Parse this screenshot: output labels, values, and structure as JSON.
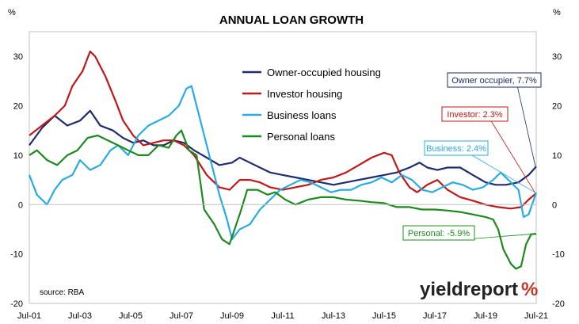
{
  "chart_data": {
    "type": "line",
    "title": "ANNUAL LOAN GROWTH",
    "ylabel_left": "%",
    "ylabel_right": "%",
    "ylim": [
      -20,
      35
    ],
    "yticks": [
      -20,
      -10,
      0,
      10,
      20,
      30
    ],
    "x_tick_labels": [
      "Jul-01",
      "Jul-03",
      "Jul-05",
      "Jul-07",
      "Jul-09",
      "Jul-11",
      "Jul-13",
      "Jul-15",
      "Jul-17",
      "Jul-19",
      "Jul-21"
    ],
    "x_tick_years": [
      2001.5,
      2003.5,
      2005.5,
      2007.5,
      2009.5,
      2011.5,
      2013.5,
      2015.5,
      2017.5,
      2019.5,
      2021.5
    ],
    "xlim": [
      2001.5,
      2021.5
    ],
    "grid": false,
    "legend_position": "top-center",
    "source": "source: RBA",
    "brand": "yieldreport",
    "brand_symbol": "%",
    "brand_symbol_color": "#c0392b",
    "series": [
      {
        "name": "Owner-occupied housing",
        "color": "#1f2d6b",
        "annotation": "Owner occupier, 7.7%",
        "points": [
          [
            2001.5,
            12
          ],
          [
            2002.0,
            15.5
          ],
          [
            2002.5,
            18
          ],
          [
            2003.0,
            16
          ],
          [
            2003.5,
            17
          ],
          [
            2003.9,
            19
          ],
          [
            2004.3,
            16
          ],
          [
            2004.8,
            15
          ],
          [
            2005.2,
            13.5
          ],
          [
            2005.6,
            12.5
          ],
          [
            2006.0,
            13
          ],
          [
            2006.4,
            12
          ],
          [
            2006.8,
            12
          ],
          [
            2007.2,
            13
          ],
          [
            2007.6,
            12.5
          ],
          [
            2008.0,
            11
          ],
          [
            2008.5,
            9.5
          ],
          [
            2009.0,
            8
          ],
          [
            2009.5,
            8.5
          ],
          [
            2009.8,
            9.5
          ],
          [
            2010.2,
            8.5
          ],
          [
            2010.6,
            7.5
          ],
          [
            2011.0,
            6.5
          ],
          [
            2011.5,
            6
          ],
          [
            2012.0,
            5.5
          ],
          [
            2012.5,
            5
          ],
          [
            2013.0,
            4.5
          ],
          [
            2013.5,
            4
          ],
          [
            2014.0,
            4.5
          ],
          [
            2014.5,
            5
          ],
          [
            2015.0,
            5.5
          ],
          [
            2015.5,
            6
          ],
          [
            2016.0,
            6.5
          ],
          [
            2016.5,
            7.5
          ],
          [
            2016.9,
            8.5
          ],
          [
            2017.2,
            7.5
          ],
          [
            2017.6,
            7
          ],
          [
            2018.0,
            7.5
          ],
          [
            2018.5,
            7.5
          ],
          [
            2019.0,
            6
          ],
          [
            2019.5,
            4.5
          ],
          [
            2019.9,
            4
          ],
          [
            2020.3,
            4
          ],
          [
            2020.8,
            4.5
          ],
          [
            2021.2,
            6
          ],
          [
            2021.5,
            7.7
          ]
        ]
      },
      {
        "name": "Investor housing",
        "color": "#c01818",
        "annotation": "Investor: 2.3%",
        "points": [
          [
            2001.5,
            14
          ],
          [
            2002.0,
            16
          ],
          [
            2002.5,
            18
          ],
          [
            2002.9,
            20
          ],
          [
            2003.2,
            24
          ],
          [
            2003.6,
            27
          ],
          [
            2003.9,
            31
          ],
          [
            2004.1,
            30
          ],
          [
            2004.5,
            26
          ],
          [
            2004.9,
            21
          ],
          [
            2005.2,
            17
          ],
          [
            2005.6,
            14
          ],
          [
            2006.0,
            12
          ],
          [
            2006.4,
            12.5
          ],
          [
            2006.8,
            13
          ],
          [
            2007.2,
            13
          ],
          [
            2007.6,
            12
          ],
          [
            2008.0,
            10
          ],
          [
            2008.5,
            6
          ],
          [
            2009.0,
            3.5
          ],
          [
            2009.4,
            3
          ],
          [
            2009.8,
            5
          ],
          [
            2010.2,
            5
          ],
          [
            2010.6,
            4.5
          ],
          [
            2011.0,
            3.5
          ],
          [
            2011.5,
            3
          ],
          [
            2012.0,
            3.5
          ],
          [
            2012.5,
            4
          ],
          [
            2013.0,
            5
          ],
          [
            2013.5,
            5.5
          ],
          [
            2014.0,
            6.5
          ],
          [
            2014.5,
            8
          ],
          [
            2015.0,
            9.5
          ],
          [
            2015.5,
            10.5
          ],
          [
            2015.8,
            10
          ],
          [
            2016.1,
            6.5
          ],
          [
            2016.5,
            3.5
          ],
          [
            2016.8,
            2.5
          ],
          [
            2017.2,
            4
          ],
          [
            2017.6,
            5
          ],
          [
            2018.0,
            3
          ],
          [
            2018.5,
            1.5
          ],
          [
            2019.0,
            0.8
          ],
          [
            2019.5,
            0
          ],
          [
            2020.0,
            -0.5
          ],
          [
            2020.5,
            -0.8
          ],
          [
            2020.9,
            -0.5
          ],
          [
            2021.2,
            1
          ],
          [
            2021.5,
            2.3
          ]
        ]
      },
      {
        "name": "Business loans",
        "color": "#29abe2",
        "annotation": "Business: 2.4%",
        "points": [
          [
            2001.5,
            6
          ],
          [
            2001.8,
            2
          ],
          [
            2002.2,
            0
          ],
          [
            2002.5,
            3
          ],
          [
            2002.8,
            5
          ],
          [
            2003.2,
            6
          ],
          [
            2003.5,
            9
          ],
          [
            2003.9,
            7
          ],
          [
            2004.3,
            8
          ],
          [
            2004.7,
            11
          ],
          [
            2005.0,
            12
          ],
          [
            2005.4,
            10
          ],
          [
            2005.8,
            14
          ],
          [
            2006.2,
            16
          ],
          [
            2006.6,
            17
          ],
          [
            2007.0,
            18
          ],
          [
            2007.4,
            20
          ],
          [
            2007.7,
            23.5
          ],
          [
            2007.9,
            24
          ],
          [
            2008.2,
            18
          ],
          [
            2008.6,
            10
          ],
          [
            2009.0,
            2
          ],
          [
            2009.3,
            -3
          ],
          [
            2009.5,
            -7
          ],
          [
            2009.8,
            -5
          ],
          [
            2010.2,
            -4
          ],
          [
            2010.6,
            -1
          ],
          [
            2011.0,
            1
          ],
          [
            2011.4,
            3
          ],
          [
            2011.8,
            4
          ],
          [
            2012.2,
            5
          ],
          [
            2012.6,
            4.5
          ],
          [
            2013.0,
            3.5
          ],
          [
            2013.4,
            2.5
          ],
          [
            2013.8,
            3
          ],
          [
            2014.2,
            3
          ],
          [
            2014.6,
            4
          ],
          [
            2015.0,
            4.5
          ],
          [
            2015.4,
            5.5
          ],
          [
            2015.8,
            4.5
          ],
          [
            2016.2,
            6
          ],
          [
            2016.6,
            5
          ],
          [
            2017.0,
            3
          ],
          [
            2017.4,
            2.5
          ],
          [
            2017.8,
            3.5
          ],
          [
            2018.2,
            4.5
          ],
          [
            2018.6,
            4
          ],
          [
            2019.0,
            3
          ],
          [
            2019.4,
            3.5
          ],
          [
            2019.8,
            5
          ],
          [
            2020.1,
            6.5
          ],
          [
            2020.4,
            5
          ],
          [
            2020.8,
            3
          ],
          [
            2021.0,
            -2.5
          ],
          [
            2021.2,
            -2
          ],
          [
            2021.5,
            2.4
          ]
        ]
      },
      {
        "name": "Personal loans",
        "color": "#1d8a1d",
        "annotation": "Personal:  -5.9%",
        "points": [
          [
            2001.5,
            10
          ],
          [
            2001.8,
            11
          ],
          [
            2002.2,
            9
          ],
          [
            2002.6,
            8
          ],
          [
            2003.0,
            10
          ],
          [
            2003.4,
            11
          ],
          [
            2003.8,
            13.5
          ],
          [
            2004.2,
            14
          ],
          [
            2004.6,
            13
          ],
          [
            2005.0,
            12
          ],
          [
            2005.4,
            11
          ],
          [
            2005.8,
            10
          ],
          [
            2006.2,
            10
          ],
          [
            2006.6,
            12
          ],
          [
            2007.0,
            11.5
          ],
          [
            2007.3,
            14
          ],
          [
            2007.5,
            15
          ],
          [
            2007.8,
            11
          ],
          [
            2008.1,
            10
          ],
          [
            2008.4,
            -1
          ],
          [
            2008.8,
            -4
          ],
          [
            2009.1,
            -7
          ],
          [
            2009.4,
            -8
          ],
          [
            2009.8,
            -2
          ],
          [
            2010.1,
            3
          ],
          [
            2010.5,
            3
          ],
          [
            2010.9,
            2
          ],
          [
            2011.2,
            2.5
          ],
          [
            2011.6,
            1
          ],
          [
            2012.0,
            0
          ],
          [
            2012.5,
            1
          ],
          [
            2013.0,
            1.5
          ],
          [
            2013.5,
            1.5
          ],
          [
            2014.0,
            1
          ],
          [
            2014.5,
            0.8
          ],
          [
            2015.0,
            0.5
          ],
          [
            2015.5,
            0.3
          ],
          [
            2016.0,
            -0.5
          ],
          [
            2016.5,
            -0.5
          ],
          [
            2017.0,
            -1
          ],
          [
            2017.5,
            -1
          ],
          [
            2018.0,
            -1.2
          ],
          [
            2018.5,
            -1.5
          ],
          [
            2019.0,
            -2
          ],
          [
            2019.5,
            -2.5
          ],
          [
            2019.8,
            -3
          ],
          [
            2020.0,
            -5
          ],
          [
            2020.2,
            -9
          ],
          [
            2020.5,
            -12
          ],
          [
            2020.7,
            -13
          ],
          [
            2020.9,
            -12.5
          ],
          [
            2021.1,
            -8
          ],
          [
            2021.3,
            -6
          ],
          [
            2021.5,
            -5.9
          ]
        ]
      }
    ]
  }
}
